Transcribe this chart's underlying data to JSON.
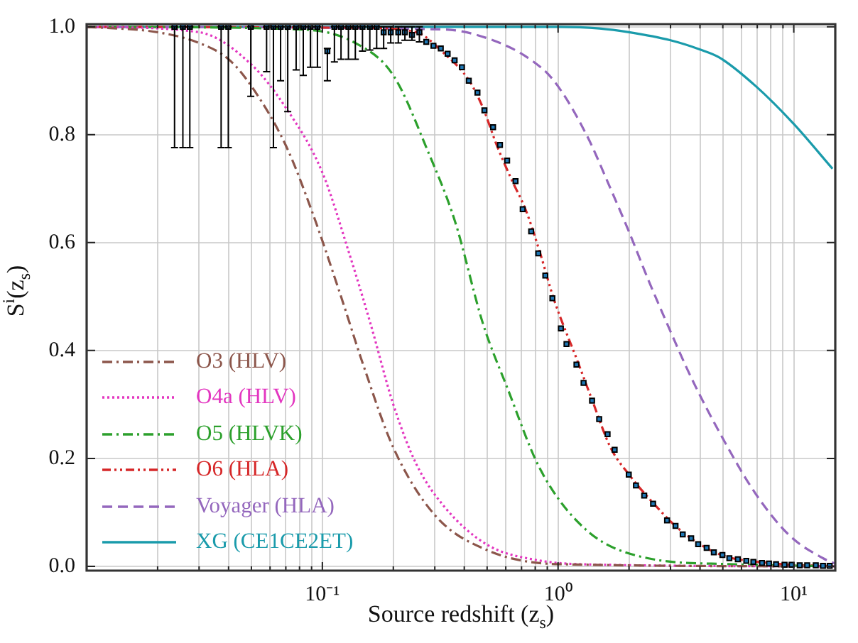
{
  "chart_data": {
    "type": "line",
    "xlabel": "Source redshift (z$_{s}$)",
    "ylabel": "S$^{i}$(z$_{s}$)",
    "log": "x",
    "grid": true,
    "legend": "bottom left",
    "xlim": [
      0.01,
      15
    ],
    "ylim": [
      -0.008,
      1.005
    ],
    "xticks": [
      {
        "value": 0.02,
        "label": null
      },
      {
        "value": 0.03,
        "label": null
      },
      {
        "value": 0.04,
        "label": null
      },
      {
        "value": 0.05,
        "label": null
      },
      {
        "value": 0.06,
        "label": null
      },
      {
        "value": 0.07,
        "label": null
      },
      {
        "value": 0.08,
        "label": null
      },
      {
        "value": 0.09,
        "label": null
      },
      {
        "value": 0.1,
        "label": "10⁻¹"
      },
      {
        "value": 0.2,
        "label": null
      },
      {
        "value": 0.3,
        "label": null
      },
      {
        "value": 0.4,
        "label": null
      },
      {
        "value": 0.5,
        "label": null
      },
      {
        "value": 0.6,
        "label": null
      },
      {
        "value": 0.7,
        "label": null
      },
      {
        "value": 0.8,
        "label": null
      },
      {
        "value": 0.9,
        "label": null
      },
      {
        "value": 1,
        "label": "10⁰"
      },
      {
        "value": 2,
        "label": null
      },
      {
        "value": 3,
        "label": null
      },
      {
        "value": 4,
        "label": null
      },
      {
        "value": 5,
        "label": null
      },
      {
        "value": 6,
        "label": null
      },
      {
        "value": 7,
        "label": null
      },
      {
        "value": 8,
        "label": null
      },
      {
        "value": 9,
        "label": null
      },
      {
        "value": 10,
        "label": "10¹"
      }
    ],
    "yticks": [
      {
        "value": 0,
        "label": "0.0"
      },
      0.2,
      0.4,
      0.6,
      0.8,
      {
        "value": 1,
        "label": "1.0"
      }
    ],
    "series": [
      {
        "name": "O3 (HLV)",
        "type": "line",
        "color": "#8c564b",
        "line_style": "dashdot",
        "x": [
          0.01,
          0.02,
          0.03,
          0.04,
          0.05,
          0.07,
          0.09,
          0.12,
          0.15,
          0.2,
          0.3,
          0.5,
          1,
          15
        ],
        "values": [
          1,
          0.99,
          0.97,
          0.94,
          0.89,
          0.78,
          0.66,
          0.5,
          0.37,
          0.22,
          0.095,
          0.03,
          0.004,
          0
        ]
      },
      {
        "name": "O4a (HLV)",
        "type": "line",
        "color": "#e336c0",
        "line_style": "dotted",
        "x": [
          0.01,
          0.03,
          0.05,
          0.07,
          0.1,
          0.13,
          0.16,
          0.2,
          0.25,
          0.33,
          0.5,
          0.8,
          1.5,
          15
        ],
        "values": [
          1,
          0.99,
          0.93,
          0.85,
          0.73,
          0.58,
          0.45,
          0.3,
          0.19,
          0.11,
          0.04,
          0.012,
          0.003,
          0
        ]
      },
      {
        "name": "O5 (HLVK)",
        "type": "line",
        "color": "#2ca02c",
        "line_style": "dashdot",
        "x": [
          0.01,
          0.083,
          0.138,
          0.2,
          0.28,
          0.365,
          0.48,
          0.61,
          0.84,
          1.32,
          2.4,
          5.3,
          15
        ],
        "values": [
          1,
          0.995,
          0.97,
          0.91,
          0.77,
          0.64,
          0.45,
          0.33,
          0.18,
          0.067,
          0.015,
          0.004,
          0
        ]
      },
      {
        "name": "O6 (HLA)",
        "type": "line",
        "color": "#d62728",
        "line_style": "dashdotdot",
        "x": [
          0.01,
          0.15,
          0.25,
          0.33,
          0.42,
          0.48,
          0.55,
          0.63,
          0.73,
          0.84,
          0.96,
          1.21,
          1.39,
          1.67,
          2,
          2.5,
          3.3,
          4.8,
          8.4,
          15
        ],
        "values": [
          1,
          0.998,
          0.99,
          0.95,
          0.9,
          0.85,
          0.78,
          0.72,
          0.66,
          0.58,
          0.495,
          0.38,
          0.31,
          0.22,
          0.17,
          0.12,
          0.067,
          0.023,
          0.005,
          0
        ]
      },
      {
        "name": "Voyager (HLA)",
        "type": "line",
        "color": "#9467bd",
        "line_style": "dashed",
        "x": [
          0.01,
          0.33,
          0.53,
          0.76,
          0.96,
          1.32,
          1.67,
          2,
          2.42,
          2.9,
          3.67,
          5,
          6.9,
          9.6,
          13.3,
          15
        ],
        "values": [
          1,
          0.995,
          0.975,
          0.94,
          0.9,
          0.8,
          0.7,
          0.62,
          0.53,
          0.45,
          0.35,
          0.237,
          0.134,
          0.057,
          0.015,
          0.005
        ]
      },
      {
        "name": "XG (CE1CE2ET)",
        "type": "line",
        "color": "#1a9bab",
        "line_style": "solid",
        "x": [
          0.01,
          1,
          1.5,
          2,
          3,
          4,
          4.84,
          6.9,
          10,
          14.6
        ],
        "values": [
          1,
          1,
          0.997,
          0.99,
          0.975,
          0.958,
          0.943,
          0.89,
          0.82,
          0.737
        ]
      },
      {
        "type": "scatter",
        "color": "#1f77b4",
        "marker": "square",
        "x": [
          0.0236,
          0.0256,
          0.0274,
          0.0372,
          0.0399,
          0.0497,
          0.058,
          0.062,
          0.0665,
          0.0713,
          0.0774,
          0.083,
          0.089,
          0.0953,
          0.105,
          0.1125,
          0.12,
          0.129,
          0.138,
          0.148,
          0.159,
          0.17,
          0.182,
          0.195,
          0.21,
          0.224,
          0.24,
          0.258,
          0.276,
          0.296,
          0.318,
          0.34,
          0.364,
          0.391,
          0.418,
          0.455,
          0.487,
          0.53,
          0.567,
          0.608,
          0.66,
          0.708,
          0.769,
          0.824,
          0.883,
          0.946,
          1.028,
          1.086,
          1.197,
          1.283,
          1.394,
          1.494,
          1.622,
          1.738,
          1.995,
          2.14,
          2.32,
          2.53,
          2.9,
          3.15,
          3.38,
          3.67,
          3.93,
          4.27,
          4.58,
          4.98,
          5.33,
          5.79,
          6.29,
          6.74,
          7.33,
          7.85,
          8.41,
          9.14,
          9.79,
          10.6,
          11.4,
          12.4,
          13.3,
          14.2
        ],
        "values": [
          1,
          1,
          1,
          1,
          1,
          1,
          1,
          1,
          1,
          1,
          1,
          1,
          1,
          1,
          0.955,
          1,
          1,
          1,
          1,
          1,
          1,
          1,
          0.99,
          0.99,
          0.99,
          0.99,
          0.985,
          0.99,
          0.972,
          0.965,
          0.96,
          0.95,
          0.938,
          0.925,
          0.9,
          0.878,
          0.845,
          0.814,
          0.781,
          0.752,
          0.714,
          0.662,
          0.621,
          0.58,
          0.539,
          0.497,
          0.441,
          0.412,
          0.374,
          0.34,
          0.307,
          0.273,
          0.245,
          0.216,
          0.17,
          0.15,
          0.131,
          0.116,
          0.085,
          0.075,
          0.059,
          0.052,
          0.041,
          0.034,
          0.026,
          0.021,
          0.015,
          0.013,
          0.01,
          0.008,
          0.006,
          0.005,
          0.004,
          0.003,
          0.003,
          0.002,
          0.002,
          0.002,
          0.001,
          0.001
        ],
        "errors": [
          [
            0.776,
            1
          ],
          [
            0.776,
            1
          ],
          [
            0.776,
            1
          ],
          [
            0.776,
            1
          ],
          [
            0.776,
            1
          ],
          [
            0.871,
            1
          ],
          [
            0.917,
            1
          ],
          [
            0.776,
            1
          ],
          [
            0.9,
            1
          ],
          [
            0.843,
            1
          ],
          [
            0.92,
            1
          ],
          [
            0.91,
            1
          ],
          [
            0.925,
            1
          ],
          [
            0.925,
            1
          ],
          [
            0.9,
            0.96
          ],
          [
            0.935,
            1
          ],
          [
            0.94,
            1
          ],
          [
            0.94,
            1
          ],
          [
            0.94,
            1
          ],
          [
            0.955,
            1
          ],
          [
            0.957,
            1
          ],
          [
            0.96,
            1
          ],
          [
            0.96,
            1
          ],
          [
            0.97,
            1
          ],
          [
            0.97,
            1
          ],
          [
            0.975,
            1
          ],
          [
            0.975,
            1
          ],
          [
            0.972,
            1
          ],
          null,
          null,
          null,
          null,
          null,
          null,
          null,
          null,
          null,
          null,
          null,
          null,
          null,
          null,
          null,
          null,
          null,
          null,
          null,
          null,
          null,
          null,
          null,
          null,
          null,
          null,
          null,
          null,
          null,
          null,
          null,
          null,
          null,
          null,
          null,
          null,
          null,
          null,
          null,
          null,
          null,
          null,
          null,
          null,
          null,
          null,
          null,
          null,
          null,
          null,
          null,
          null
        ]
      }
    ]
  }
}
